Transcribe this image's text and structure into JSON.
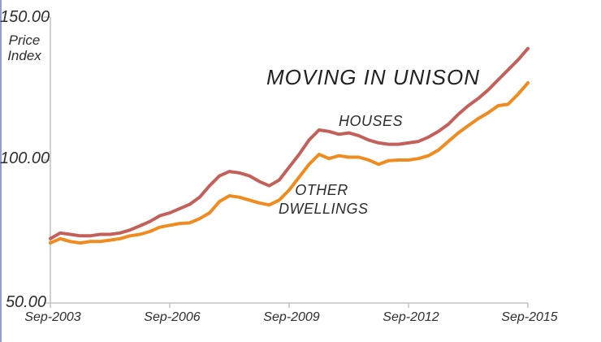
{
  "page": {
    "accent_strip_color": "#8fa0d8",
    "background_color": "#ffffff"
  },
  "chart_data": {
    "type": "line",
    "title": "MOVING IN UNISON",
    "ylabel": "Price Index",
    "ylabel_lines": {
      "line1": "Price",
      "line2": "Index"
    },
    "ylim": [
      50,
      150
    ],
    "y_ticks": [
      {
        "value": 150,
        "label": "150.00"
      },
      {
        "value": 100,
        "label": "100.00"
      },
      {
        "value": 50,
        "label": "50.00"
      }
    ],
    "x_tick_labels": [
      "Sep-2003",
      "Sep-2006",
      "Sep-2009",
      "Sep-2012",
      "Sep-2015"
    ],
    "x_range": [
      "Sep-2003",
      "Sep-2015"
    ],
    "frequency": "quarterly",
    "grid": false,
    "legend": "inline-annotations",
    "axis_color": "#c2c2c2",
    "text_color": "#2e2e2e",
    "series": [
      {
        "name": "HOUSES",
        "color": "#c4605a",
        "values": [
          72.5,
          74.5,
          74.0,
          73.5,
          73.5,
          74.0,
          74.0,
          74.5,
          75.5,
          77.0,
          78.5,
          80.5,
          81.5,
          83.0,
          84.5,
          87.0,
          91.0,
          94.5,
          96.0,
          95.5,
          94.5,
          92.5,
          91.0,
          93.0,
          97.5,
          102.0,
          107.0,
          110.5,
          110.0,
          109.0,
          109.5,
          108.5,
          107.0,
          106.0,
          105.5,
          105.5,
          106.0,
          106.5,
          108.0,
          110.0,
          112.5,
          116.0,
          119.0,
          121.5,
          124.5,
          128.0,
          131.5,
          135.0,
          139.0
        ]
      },
      {
        "name": "OTHER DWELLINGS",
        "color": "#ef8b1f",
        "values": [
          71.0,
          72.5,
          71.5,
          71.0,
          71.5,
          71.5,
          72.0,
          72.5,
          73.5,
          74.0,
          75.0,
          76.5,
          77.2,
          77.8,
          78.0,
          79.5,
          81.5,
          85.5,
          87.5,
          87.0,
          86.0,
          85.0,
          84.3,
          86.0,
          89.5,
          94.0,
          98.5,
          102.0,
          100.5,
          101.5,
          101.0,
          101.0,
          100.0,
          98.5,
          99.8,
          100.0,
          100.0,
          100.5,
          101.5,
          103.5,
          106.5,
          109.5,
          112.0,
          114.5,
          116.5,
          119.0,
          119.5,
          123.0,
          127.0
        ]
      }
    ]
  }
}
